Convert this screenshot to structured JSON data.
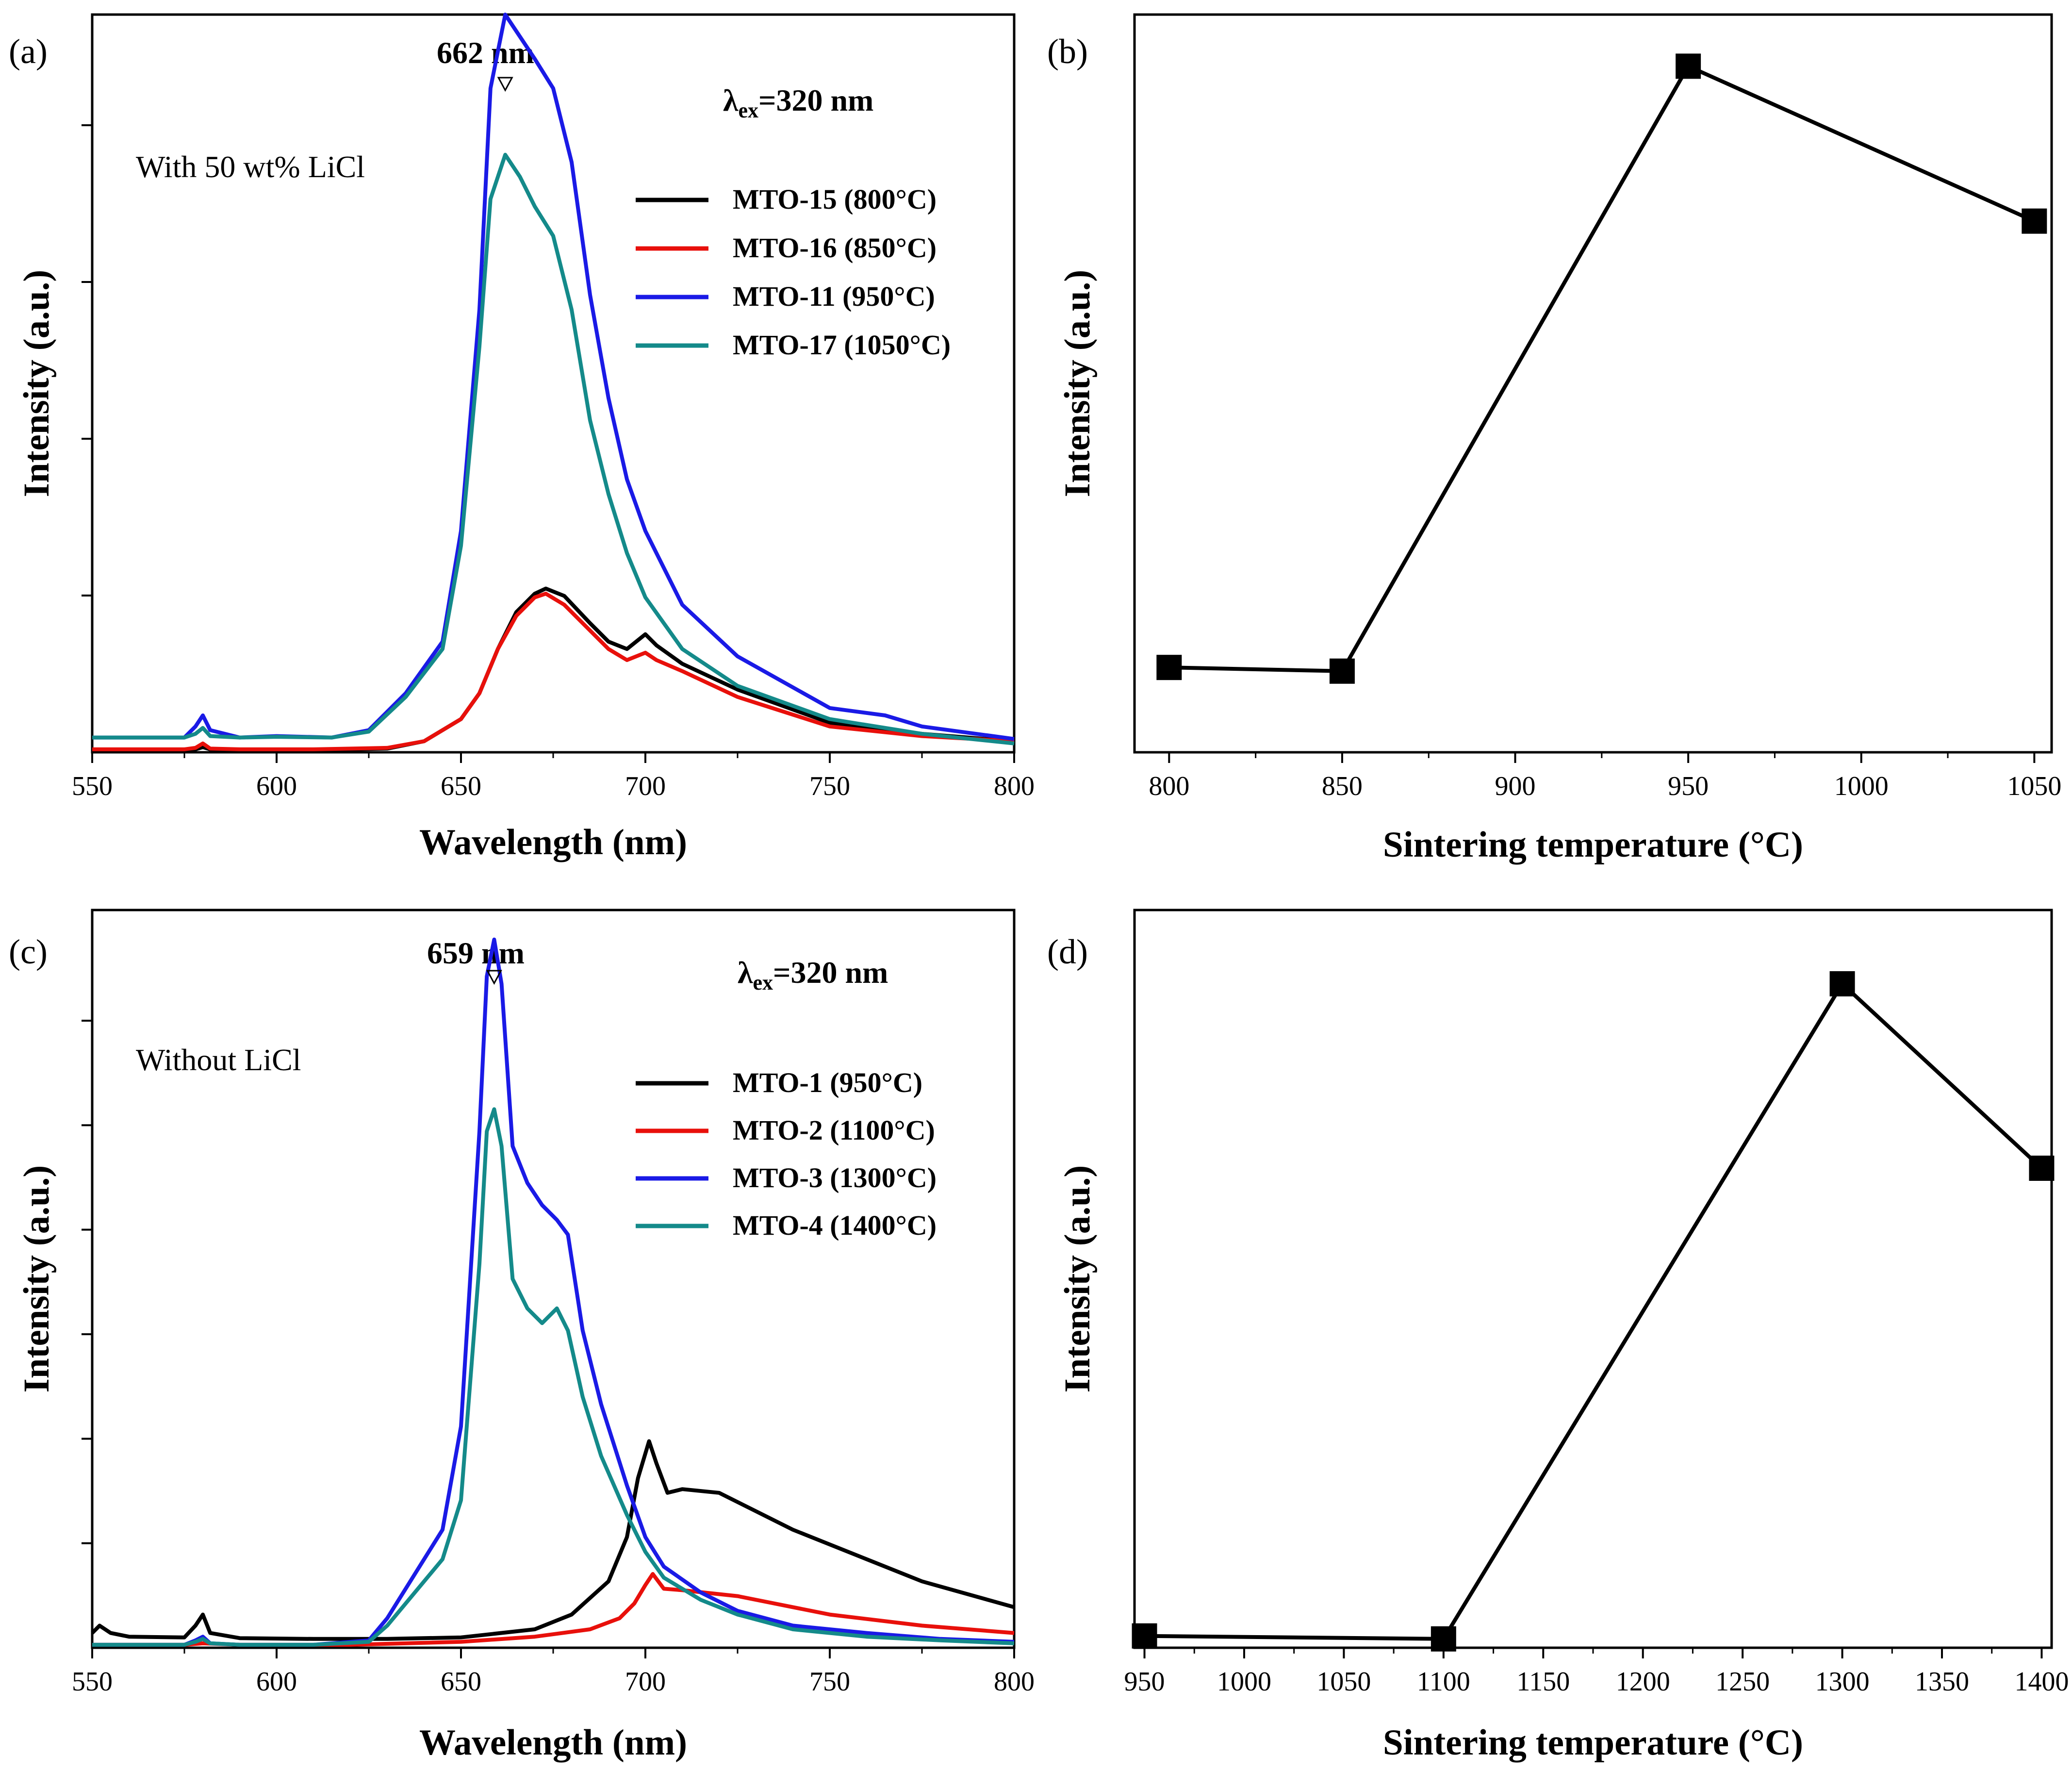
{
  "chart_data": [
    {
      "panel": "(a)",
      "type": "line",
      "xlabel": "Wavelength (nm)",
      "ylabel": "Intensity (a.u.)",
      "xlim": [
        550,
        800
      ],
      "ylim": [
        0,
        1.0
      ],
      "xticks": [
        550,
        600,
        650,
        700,
        750,
        800
      ],
      "annotations": {
        "peak": "662 nm",
        "peak_x": 662,
        "excitation": "λ",
        "excitation_sub": "ex",
        "excitation_value": "=320 nm",
        "condition": "With 50 wt% LiCl"
      },
      "series": [
        {
          "name": "MTO-15 (800°C)",
          "color": "#000000",
          "x": [
            550,
            575,
            578,
            580,
            582,
            590,
            610,
            630,
            640,
            650,
            655,
            660,
            665,
            670,
            673,
            678,
            685,
            690,
            695,
            700,
            703,
            710,
            725,
            750,
            775,
            800
          ],
          "y": [
            0.002,
            0.002,
            0.004,
            0.007,
            0.004,
            0.003,
            0.003,
            0.005,
            0.015,
            0.045,
            0.08,
            0.14,
            0.19,
            0.215,
            0.222,
            0.212,
            0.175,
            0.15,
            0.14,
            0.16,
            0.145,
            0.12,
            0.085,
            0.04,
            0.025,
            0.015
          ]
        },
        {
          "name": "MTO-16 (850°C)",
          "color": "#e8100b",
          "x": [
            550,
            575,
            578,
            580,
            582,
            590,
            610,
            630,
            640,
            650,
            655,
            660,
            665,
            670,
            673,
            678,
            685,
            690,
            695,
            700,
            703,
            710,
            725,
            750,
            775,
            800
          ],
          "y": [
            0.004,
            0.004,
            0.006,
            0.012,
            0.005,
            0.004,
            0.004,
            0.006,
            0.015,
            0.045,
            0.08,
            0.14,
            0.185,
            0.21,
            0.215,
            0.2,
            0.165,
            0.14,
            0.125,
            0.135,
            0.125,
            0.11,
            0.075,
            0.035,
            0.022,
            0.015
          ]
        },
        {
          "name": "MTO-11 (950°C)",
          "color": "#1a1ae6",
          "x": [
            550,
            575,
            578,
            580,
            582,
            590,
            600,
            615,
            625,
            635,
            645,
            650,
            655,
            658,
            662,
            666,
            670,
            675,
            680,
            685,
            690,
            695,
            700,
            710,
            725,
            750,
            765,
            775,
            800
          ],
          "y": [
            0.02,
            0.02,
            0.035,
            0.05,
            0.03,
            0.02,
            0.022,
            0.02,
            0.03,
            0.08,
            0.15,
            0.3,
            0.6,
            0.9,
            1.0,
            0.97,
            0.94,
            0.9,
            0.8,
            0.62,
            0.48,
            0.37,
            0.3,
            0.2,
            0.13,
            0.06,
            0.05,
            0.035,
            0.018
          ]
        },
        {
          "name": "MTO-17 (1050°C)",
          "color": "#148a8a",
          "x": [
            550,
            575,
            578,
            580,
            582,
            590,
            600,
            615,
            625,
            635,
            645,
            650,
            655,
            658,
            662,
            666,
            670,
            675,
            680,
            685,
            690,
            695,
            700,
            710,
            725,
            750,
            775,
            800
          ],
          "y": [
            0.02,
            0.02,
            0.025,
            0.033,
            0.022,
            0.02,
            0.021,
            0.02,
            0.028,
            0.075,
            0.14,
            0.28,
            0.55,
            0.75,
            0.81,
            0.78,
            0.74,
            0.7,
            0.6,
            0.45,
            0.35,
            0.27,
            0.21,
            0.14,
            0.09,
            0.045,
            0.025,
            0.012
          ]
        }
      ]
    },
    {
      "panel": "(b)",
      "type": "line",
      "marker": "square",
      "xlabel": "Sintering temperature (°C)",
      "ylabel": "Intensity (a.u.)",
      "xlim": [
        790,
        1055
      ],
      "ylim": [
        0,
        1.0
      ],
      "xticks": [
        800,
        850,
        900,
        950,
        1000,
        1050
      ],
      "series": [
        {
          "name": "Intensity",
          "color": "#000000",
          "x": [
            800,
            850,
            950,
            1050
          ],
          "y": [
            0.115,
            0.11,
            0.93,
            0.72
          ]
        }
      ]
    },
    {
      "panel": "(c)",
      "type": "line",
      "xlabel": "Wavelength (nm)",
      "ylabel": "Intensity (a.u.)",
      "xlim": [
        550,
        800
      ],
      "ylim": [
        0,
        1.0
      ],
      "xticks": [
        550,
        600,
        650,
        700,
        750,
        800
      ],
      "annotations": {
        "peak": "659 nm",
        "peak_x": 659,
        "excitation": "λ",
        "excitation_sub": "ex",
        "excitation_value": "=320 nm",
        "condition": "Without LiCl"
      },
      "series": [
        {
          "name": "MTO-1 (950°C)",
          "color": "#000000",
          "x": [
            550,
            552,
            555,
            560,
            575,
            578,
            580,
            582,
            590,
            610,
            630,
            650,
            670,
            680,
            690,
            695,
            698,
            701,
            703,
            706,
            710,
            720,
            740,
            760,
            775,
            800
          ],
          "y": [
            0.02,
            0.03,
            0.02,
            0.015,
            0.014,
            0.03,
            0.045,
            0.02,
            0.013,
            0.012,
            0.012,
            0.014,
            0.025,
            0.045,
            0.09,
            0.15,
            0.23,
            0.28,
            0.25,
            0.21,
            0.215,
            0.21,
            0.16,
            0.12,
            0.09,
            0.055
          ]
        },
        {
          "name": "MTO-2 (1100°C)",
          "color": "#e8100b",
          "x": [
            550,
            575,
            580,
            590,
            620,
            650,
            670,
            685,
            693,
            697,
            700,
            702,
            705,
            710,
            725,
            750,
            775,
            800
          ],
          "y": [
            0.004,
            0.004,
            0.006,
            0.004,
            0.004,
            0.008,
            0.015,
            0.025,
            0.04,
            0.06,
            0.085,
            0.1,
            0.08,
            0.078,
            0.07,
            0.045,
            0.03,
            0.02
          ]
        },
        {
          "name": "MTO-3 (1300°C)",
          "color": "#1a1ae6",
          "x": [
            550,
            575,
            578,
            580,
            582,
            590,
            610,
            625,
            630,
            640,
            645,
            650,
            655,
            657,
            659,
            661,
            664,
            668,
            672,
            676,
            679,
            683,
            688,
            695,
            700,
            705,
            715,
            725,
            740,
            760,
            780,
            800
          ],
          "y": [
            0.004,
            0.004,
            0.01,
            0.015,
            0.006,
            0.004,
            0.004,
            0.01,
            0.04,
            0.12,
            0.16,
            0.3,
            0.7,
            0.91,
            0.96,
            0.9,
            0.68,
            0.63,
            0.6,
            0.58,
            0.56,
            0.43,
            0.33,
            0.22,
            0.15,
            0.11,
            0.075,
            0.05,
            0.03,
            0.02,
            0.012,
            0.008
          ]
        },
        {
          "name": "MTO-4 (1400°C)",
          "color": "#148a8a",
          "x": [
            550,
            575,
            578,
            580,
            582,
            590,
            610,
            625,
            630,
            640,
            645,
            650,
            655,
            657,
            659,
            661,
            664,
            668,
            672,
            676,
            679,
            683,
            688,
            695,
            700,
            705,
            715,
            725,
            740,
            760,
            780,
            800
          ],
          "y": [
            0.004,
            0.004,
            0.008,
            0.012,
            0.006,
            0.004,
            0.004,
            0.008,
            0.03,
            0.09,
            0.12,
            0.2,
            0.52,
            0.7,
            0.73,
            0.68,
            0.5,
            0.46,
            0.44,
            0.46,
            0.43,
            0.34,
            0.26,
            0.18,
            0.13,
            0.095,
            0.065,
            0.045,
            0.025,
            0.015,
            0.01,
            0.006
          ]
        }
      ]
    },
    {
      "panel": "(d)",
      "type": "line",
      "marker": "square",
      "xlabel": "Sintering temperature (°C)",
      "ylabel": "Intensity (a.u.)",
      "xlim": [
        945,
        1405
      ],
      "ylim": [
        0,
        1.0
      ],
      "xticks": [
        950,
        1000,
        1050,
        1100,
        1150,
        1200,
        1250,
        1300,
        1350,
        1400
      ],
      "series": [
        {
          "name": "Intensity",
          "color": "#000000",
          "x": [
            950,
            1100,
            1300,
            1400
          ],
          "y": [
            0.016,
            0.012,
            0.9,
            0.65
          ]
        }
      ]
    }
  ]
}
